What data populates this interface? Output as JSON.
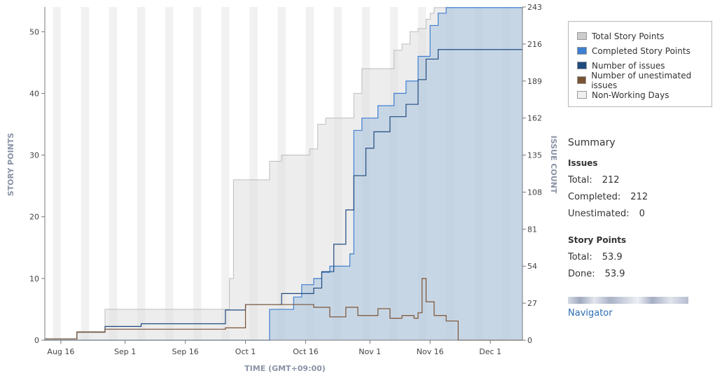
{
  "chart_data": {
    "type": "area",
    "xlabel": "TIME (GMT+09:00)",
    "ylabel_left": "STORY POINTS",
    "ylabel_right": "ISSUE COUNT",
    "x_ticks": [
      "Aug 16",
      "Sep 1",
      "Sep 16",
      "Oct 1",
      "Oct 16",
      "Nov 1",
      "Nov 16",
      "Dec 1"
    ],
    "x_range": [
      "2021-08-12",
      "2021-12-09"
    ],
    "y_left_range": [
      0,
      54
    ],
    "y_left_ticks": [
      0,
      10,
      20,
      30,
      40,
      50
    ],
    "y_right_range": [
      0,
      243
    ],
    "y_right_ticks": [
      0,
      27,
      54,
      81,
      108,
      135,
      162,
      189,
      216,
      243
    ],
    "series": [
      {
        "name": "Total Story Points",
        "color": "#cccccc",
        "x": [
          "2021-08-12",
          "2021-08-20",
          "2021-08-27",
          "2021-08-27",
          "2021-09-26",
          "2021-09-27",
          "2021-09-28",
          "2021-09-30",
          "2021-10-07",
          "2021-10-10",
          "2021-10-17",
          "2021-10-19",
          "2021-10-21",
          "2021-10-24",
          "2021-10-28",
          "2021-10-30",
          "2021-11-03",
          "2021-11-07",
          "2021-11-09",
          "2021-11-11",
          "2021-11-13",
          "2021-11-15",
          "2021-11-16",
          "2021-11-17",
          "2021-11-18",
          "2021-12-09"
        ],
        "y": [
          0.2,
          1.2,
          1.8,
          5.0,
          5.0,
          10.0,
          26.0,
          26.0,
          29.0,
          30.0,
          31.0,
          35.0,
          36.0,
          36.0,
          40.0,
          44.0,
          44.0,
          47.0,
          48.0,
          50.0,
          50.5,
          52.0,
          53.0,
          53.9,
          53.9,
          53.9
        ]
      },
      {
        "name": "Completed Story Points",
        "color": "#3f7fd0",
        "x": [
          "2021-08-12",
          "2021-09-30",
          "2021-10-07",
          "2021-10-07",
          "2021-10-13",
          "2021-10-15",
          "2021-10-18",
          "2021-10-20",
          "2021-10-22",
          "2021-10-27",
          "2021-10-28",
          "2021-10-30",
          "2021-11-03",
          "2021-11-07",
          "2021-11-10",
          "2021-11-13",
          "2021-11-16",
          "2021-11-18",
          "2021-11-20",
          "2021-12-09"
        ],
        "y": [
          0.0,
          0.0,
          0.0,
          5.0,
          7.0,
          9.0,
          10.0,
          11.0,
          12.0,
          14.0,
          34.0,
          36.0,
          38.0,
          40.0,
          42.0,
          46.0,
          51.0,
          53.0,
          53.9,
          53.9
        ]
      },
      {
        "name": "Number of issues",
        "color": "#1f4a7f",
        "axis": "right",
        "x": [
          "2021-08-12",
          "2021-08-20",
          "2021-08-27",
          "2021-09-05",
          "2021-09-26",
          "2021-10-01",
          "2021-10-10",
          "2021-10-18",
          "2021-10-20",
          "2021-10-23",
          "2021-10-26",
          "2021-10-28",
          "2021-10-31",
          "2021-11-02",
          "2021-11-06",
          "2021-11-10",
          "2021-11-13",
          "2021-11-15",
          "2021-11-18",
          "2021-12-09"
        ],
        "y": [
          1,
          6,
          10,
          12,
          22,
          26,
          34,
          38,
          50,
          70,
          95,
          120,
          140,
          152,
          163,
          172,
          190,
          205,
          212,
          212
        ]
      },
      {
        "name": "Number of unestimated issues",
        "color": "#7a5334",
        "axis": "right",
        "x": [
          "2021-08-12",
          "2021-08-20",
          "2021-08-27",
          "2021-09-26",
          "2021-10-01",
          "2021-10-11",
          "2021-10-18",
          "2021-10-22",
          "2021-10-26",
          "2021-10-29",
          "2021-11-03",
          "2021-11-06",
          "2021-11-09",
          "2021-11-12",
          "2021-11-13",
          "2021-11-14",
          "2021-11-15",
          "2021-11-17",
          "2021-11-20",
          "2021-11-23",
          "2021-12-09"
        ],
        "y": [
          1,
          6,
          8,
          9,
          26,
          26,
          24,
          17,
          24,
          18,
          23,
          16,
          18,
          16,
          20,
          45,
          28,
          18,
          14,
          0,
          0
        ]
      }
    ],
    "non_working_days": {
      "name": "Non-Working Days",
      "color": "#eeeeee"
    },
    "legend_position": "top-right",
    "grid": false
  },
  "legend": {
    "items": [
      {
        "label": "Total Story Points",
        "color": "#cccccc"
      },
      {
        "label": "Completed Story Points",
        "color": "#3f7fd0"
      },
      {
        "label": "Number of issues",
        "color": "#1f4a7f"
      },
      {
        "label": "Number of unestimated issues",
        "color": "#7a5334"
      },
      {
        "label": "Non-Working Days",
        "color": "#f0f0f0"
      }
    ]
  },
  "summary": {
    "title": "Summary",
    "issues_heading": "Issues",
    "issues": [
      {
        "label": "Total:",
        "value": "212"
      },
      {
        "label": "Completed:",
        "value": "212"
      },
      {
        "label": "Unestimated:",
        "value": "0"
      }
    ],
    "sp_heading": "Story Points",
    "story_points": [
      {
        "label": "Total:",
        "value": "53.9"
      },
      {
        "label": "Done:",
        "value": "53.9"
      }
    ],
    "link_label": "Navigator"
  }
}
